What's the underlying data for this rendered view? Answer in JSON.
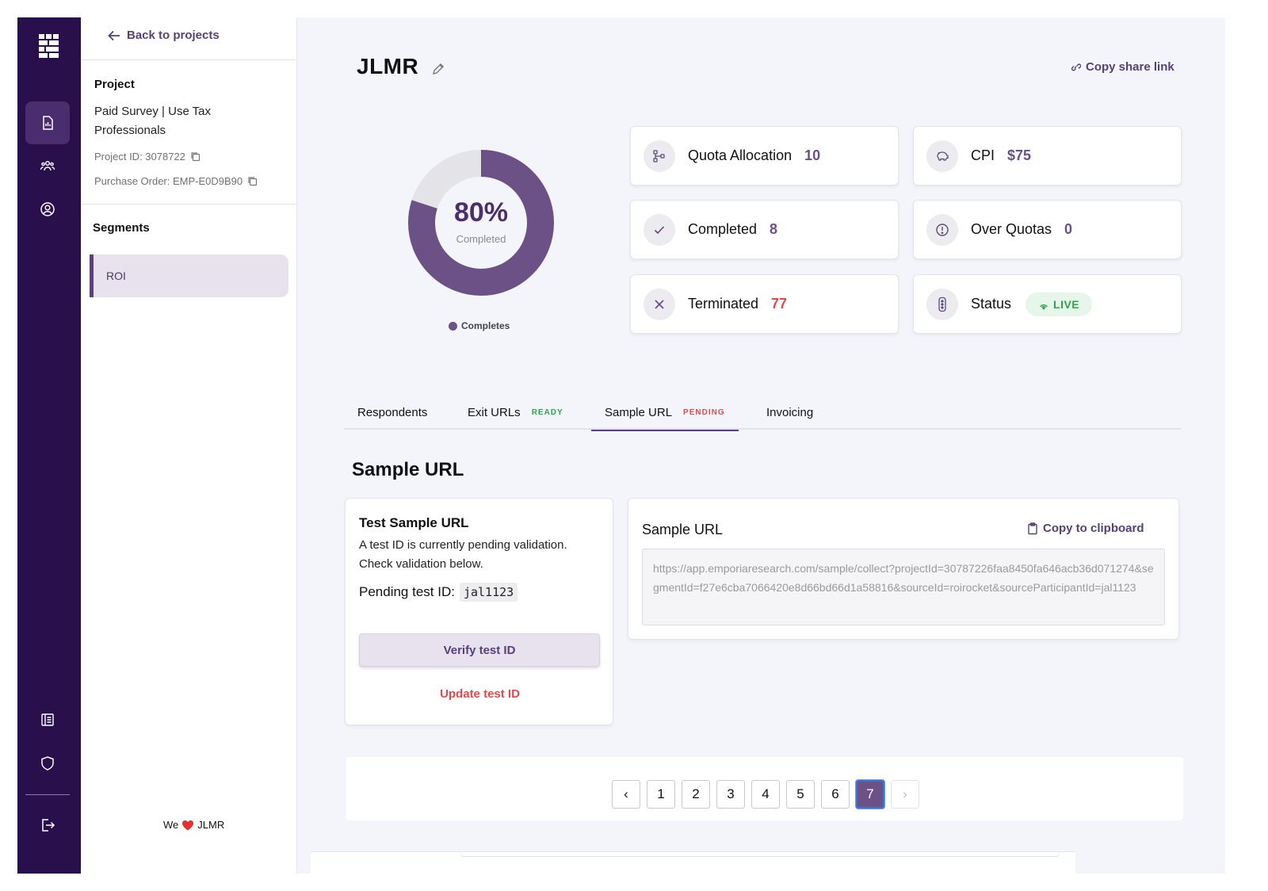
{
  "sidebar": {
    "back_label": "Back to projects",
    "project_heading": "Project",
    "project_name": "Paid Survey | Use Tax Professionals",
    "project_id": "Project ID: 3078722",
    "purchase_order": "Purchase Order: EMP-E0D9B90",
    "segments_heading": "Segments",
    "segments": [
      "ROI"
    ],
    "footer_we": "We",
    "footer_brand": "JLMR"
  },
  "header": {
    "title": "JLMR",
    "share_label": "Copy share link"
  },
  "progress": {
    "percent_label": "80%",
    "percent_value": 0.8,
    "caption": "Completed",
    "legend": "Completes",
    "colors": {
      "filled": "#6b5186",
      "remaining": "#e3e3e8"
    }
  },
  "stats": {
    "quota_label": "Quota Allocation",
    "quota_value": "10",
    "cpi_label": "CPI",
    "cpi_value": "$75",
    "completed_label": "Completed",
    "completed_value": "8",
    "over_label": "Over Quotas",
    "over_value": "0",
    "terminated_label": "Terminated",
    "terminated_value": "77",
    "status_label": "Status",
    "status_value": "LIVE"
  },
  "tabs": [
    {
      "label": "Respondents"
    },
    {
      "label": "Exit URLs",
      "tag": "READY"
    },
    {
      "label": "Sample URL",
      "tag": "PENDING"
    },
    {
      "label": "Invoicing"
    }
  ],
  "sample": {
    "section_title": "Sample URL",
    "test_title": "Test Sample URL",
    "test_desc": "A test ID is currently pending validation. Check validation below.",
    "pending_label": "Pending test ID:",
    "pending_id": "jal1123",
    "verify_label": "Verify test ID",
    "update_label": "Update test ID",
    "url_title": "Sample URL",
    "copy_label": "Copy to clipboard",
    "url": "https://app.emporiaresearch.com/sample/collect?projectId=30787226faa8450fa646acb36d071274&segmentId=f27e6cba7066420e8d66bd66d1a58816&sourceId=roirocket&sourceParticipantId=jal1123"
  },
  "pagination": {
    "prev": "‹",
    "pages": [
      "1",
      "2",
      "3",
      "4",
      "5",
      "6",
      "7"
    ],
    "current": "7",
    "next": "›"
  },
  "colors": {
    "rail": "#2a0f4d",
    "accent": "#56407a",
    "danger": "#e5484d",
    "success": "#2ea44f"
  }
}
